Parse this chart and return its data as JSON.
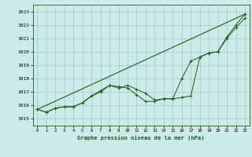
{
  "title": "Graphe pression niveau de la mer (hPa)",
  "bg_color": "#cceae8",
  "grid_color": "#aacccc",
  "line_color": "#1a5c1a",
  "xlim": [
    -0.5,
    23.5
  ],
  "ylim": [
    1014.5,
    1023.5
  ],
  "yticks": [
    1015,
    1016,
    1017,
    1018,
    1019,
    1020,
    1021,
    1022,
    1023
  ],
  "xticks": [
    0,
    1,
    2,
    3,
    4,
    5,
    6,
    7,
    8,
    9,
    10,
    11,
    12,
    13,
    14,
    15,
    16,
    17,
    18,
    19,
    20,
    21,
    22,
    23
  ],
  "series_dotted": {
    "x": [
      0,
      1,
      2,
      3,
      4,
      5,
      6,
      7,
      8,
      9,
      10,
      11,
      12,
      13,
      14,
      15,
      16,
      17,
      18,
      19,
      20,
      21,
      22,
      23
    ],
    "y": [
      1015.7,
      1015.5,
      1015.8,
      1015.9,
      1015.9,
      1016.2,
      1016.7,
      1017.1,
      1017.5,
      1017.4,
      1017.3,
      1016.8,
      1016.3,
      1016.3,
      1016.5,
      1016.5,
      1016.6,
      1016.7,
      1019.6,
      1019.9,
      1020.0,
      1021.0,
      1021.8,
      1022.5
    ]
  },
  "series_markers": {
    "x": [
      0,
      1,
      2,
      3,
      4,
      5,
      6,
      7,
      8,
      9,
      10,
      11,
      12,
      13,
      14,
      15,
      16,
      17,
      18,
      19,
      20,
      21,
      22,
      23
    ],
    "y": [
      1015.7,
      1015.5,
      1015.8,
      1015.9,
      1015.9,
      1016.2,
      1016.7,
      1017.0,
      1017.5,
      1017.3,
      1017.5,
      1017.2,
      1016.9,
      1016.4,
      1016.5,
      1016.5,
      1018.0,
      1019.3,
      1019.6,
      1019.9,
      1020.0,
      1021.1,
      1022.0,
      1022.8
    ]
  },
  "series_straight": {
    "x": [
      0,
      23
    ],
    "y": [
      1015.7,
      1022.8
    ]
  }
}
